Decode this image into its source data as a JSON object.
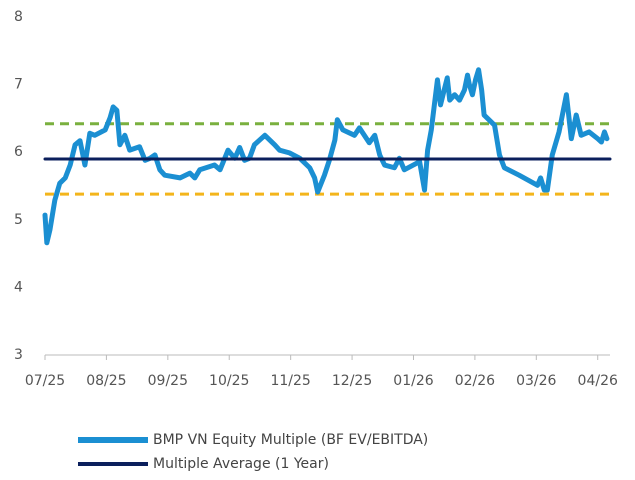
{
  "chart_data": {
    "type": "line",
    "xlim": [
      0,
      9.2
    ],
    "xticks": [
      {
        "value": 0,
        "label": "07/25"
      },
      {
        "value": 1,
        "label": "08/25"
      },
      {
        "value": 2,
        "label": "09/25"
      },
      {
        "value": 3,
        "label": "10/25"
      },
      {
        "value": 4,
        "label": "11/25"
      },
      {
        "value": 5,
        "label": "12/25"
      },
      {
        "value": 6,
        "label": "01/26"
      },
      {
        "value": 7,
        "label": "02/26"
      },
      {
        "value": 8,
        "label": "03/26"
      },
      {
        "value": 9,
        "label": "04/26"
      }
    ],
    "ylim": [
      3,
      8
    ],
    "yticks": [
      3,
      4,
      5,
      6,
      7,
      8
    ],
    "grid": false,
    "legend": "bottom",
    "series": [
      {
        "name": "BMP VN Equity Multiple (BF EV/EBITDA)",
        "color": "#1b8fd2",
        "width": 5,
        "x": [
          0,
          0.03,
          0.08,
          0.16,
          0.24,
          0.33,
          0.41,
          0.49,
          0.57,
          0.65,
          0.73,
          0.81,
          0.98,
          1.06,
          1.11,
          1.17,
          1.22,
          1.3,
          1.38,
          1.54,
          1.63,
          1.71,
          1.79,
          1.87,
          1.95,
          2.2,
          2.36,
          2.44,
          2.52,
          2.76,
          2.85,
          2.98,
          3.09,
          3.17,
          3.25,
          3.33,
          3.41,
          3.58,
          3.74,
          3.82,
          3.98,
          4.15,
          4.31,
          4.39,
          4.44,
          4.55,
          4.63,
          4.72,
          4.76,
          4.85,
          5.04,
          5.12,
          5.28,
          5.37,
          5.45,
          5.53,
          5.69,
          5.77,
          5.85,
          6.1,
          6.18,
          6.23,
          6.29,
          6.39,
          6.44,
          6.5,
          6.55,
          6.59,
          6.67,
          6.75,
          6.83,
          6.88,
          6.91,
          6.96,
          7.01,
          7.06,
          7.11,
          7.15,
          7.32,
          7.4,
          7.48,
          7.72,
          8.02,
          8.07,
          8.13,
          8.18,
          8.26,
          8.37,
          8.49,
          8.57,
          8.65,
          8.73,
          8.86,
          9.0,
          9.06,
          9.11,
          9.15
        ],
        "values": [
          5.07,
          4.66,
          4.85,
          5.29,
          5.54,
          5.62,
          5.81,
          6.11,
          6.17,
          5.81,
          6.28,
          6.25,
          6.33,
          6.51,
          6.67,
          6.62,
          6.11,
          6.25,
          6.03,
          6.08,
          5.88,
          5.91,
          5.96,
          5.74,
          5.66,
          5.62,
          5.69,
          5.62,
          5.74,
          5.81,
          5.74,
          6.03,
          5.91,
          6.07,
          5.88,
          5.91,
          6.11,
          6.25,
          6.11,
          6.03,
          5.99,
          5.91,
          5.77,
          5.62,
          5.41,
          5.66,
          5.88,
          6.18,
          6.48,
          6.33,
          6.25,
          6.36,
          6.14,
          6.25,
          5.96,
          5.81,
          5.77,
          5.91,
          5.74,
          5.86,
          5.44,
          6.03,
          6.33,
          7.07,
          6.7,
          6.92,
          7.1,
          6.77,
          6.85,
          6.77,
          6.92,
          7.14,
          7.0,
          6.85,
          7.07,
          7.22,
          6.92,
          6.55,
          6.4,
          5.96,
          5.77,
          5.66,
          5.51,
          5.62,
          5.44,
          5.44,
          5.96,
          6.3,
          6.85,
          6.2,
          6.55,
          6.25,
          6.3,
          6.2,
          6.15,
          6.3,
          6.2
        ]
      },
      {
        "name": "Multiple Average (1 Year)",
        "color": "#0b1f5c",
        "width": 3,
        "x": [
          0,
          9.2
        ],
        "values": [
          5.9,
          5.9
        ]
      }
    ],
    "reference_lines": [
      {
        "value": 6.42,
        "color": "#7ab03f",
        "style": "dashed"
      },
      {
        "value": 5.38,
        "color": "#f3b51b",
        "style": "dashed"
      }
    ]
  }
}
